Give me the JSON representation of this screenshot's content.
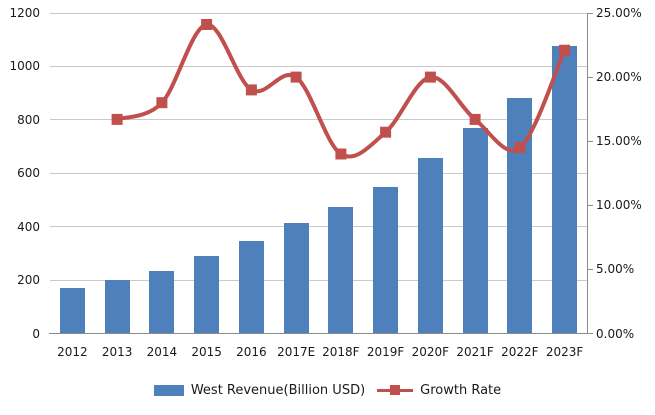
{
  "chart_data": {
    "type": "bar",
    "subtype": "bar-line-combo",
    "title": "",
    "categories": [
      "2012",
      "2013",
      "2014",
      "2015",
      "2016",
      "2017E",
      "2018F",
      "2019F",
      "2020F",
      "2021F",
      "2022F",
      "2023F"
    ],
    "series": [
      {
        "name": "West Revenue(Billion USD)",
        "type": "bar",
        "axis": "left",
        "color": "#4E80BC",
        "values": [
          170,
          200,
          235,
          291,
          345,
          415,
          473,
          548,
          658,
          770,
          880,
          1075
        ]
      },
      {
        "name": "Growth Rate",
        "type": "line",
        "axis": "right",
        "color": "#C0504D",
        "marker": "square",
        "smooth": true,
        "values_percent": [
          null,
          16.7,
          18.0,
          24.1,
          19.0,
          20.0,
          14.0,
          15.7,
          20.0,
          16.7,
          14.5,
          22.1
        ]
      }
    ],
    "left_axis": {
      "min": 0,
      "max": 1200,
      "tick_labels": [
        "0",
        "200",
        "400",
        "600",
        "800",
        "1000",
        "1200"
      ]
    },
    "right_axis": {
      "min": 0,
      "max": 25,
      "tick_labels": [
        "0.00%",
        "5.00%",
        "10.00%",
        "15.00%",
        "20.00%",
        "25.00%"
      ]
    },
    "grid": true,
    "legend_position": "bottom",
    "colors": {
      "bar": "#4E80BC",
      "line": "#C0504D",
      "gridline": "#C9C9C9",
      "axis": "#8C8C8C",
      "text": "#1A1A1A",
      "background": "#FFFFFF"
    }
  }
}
